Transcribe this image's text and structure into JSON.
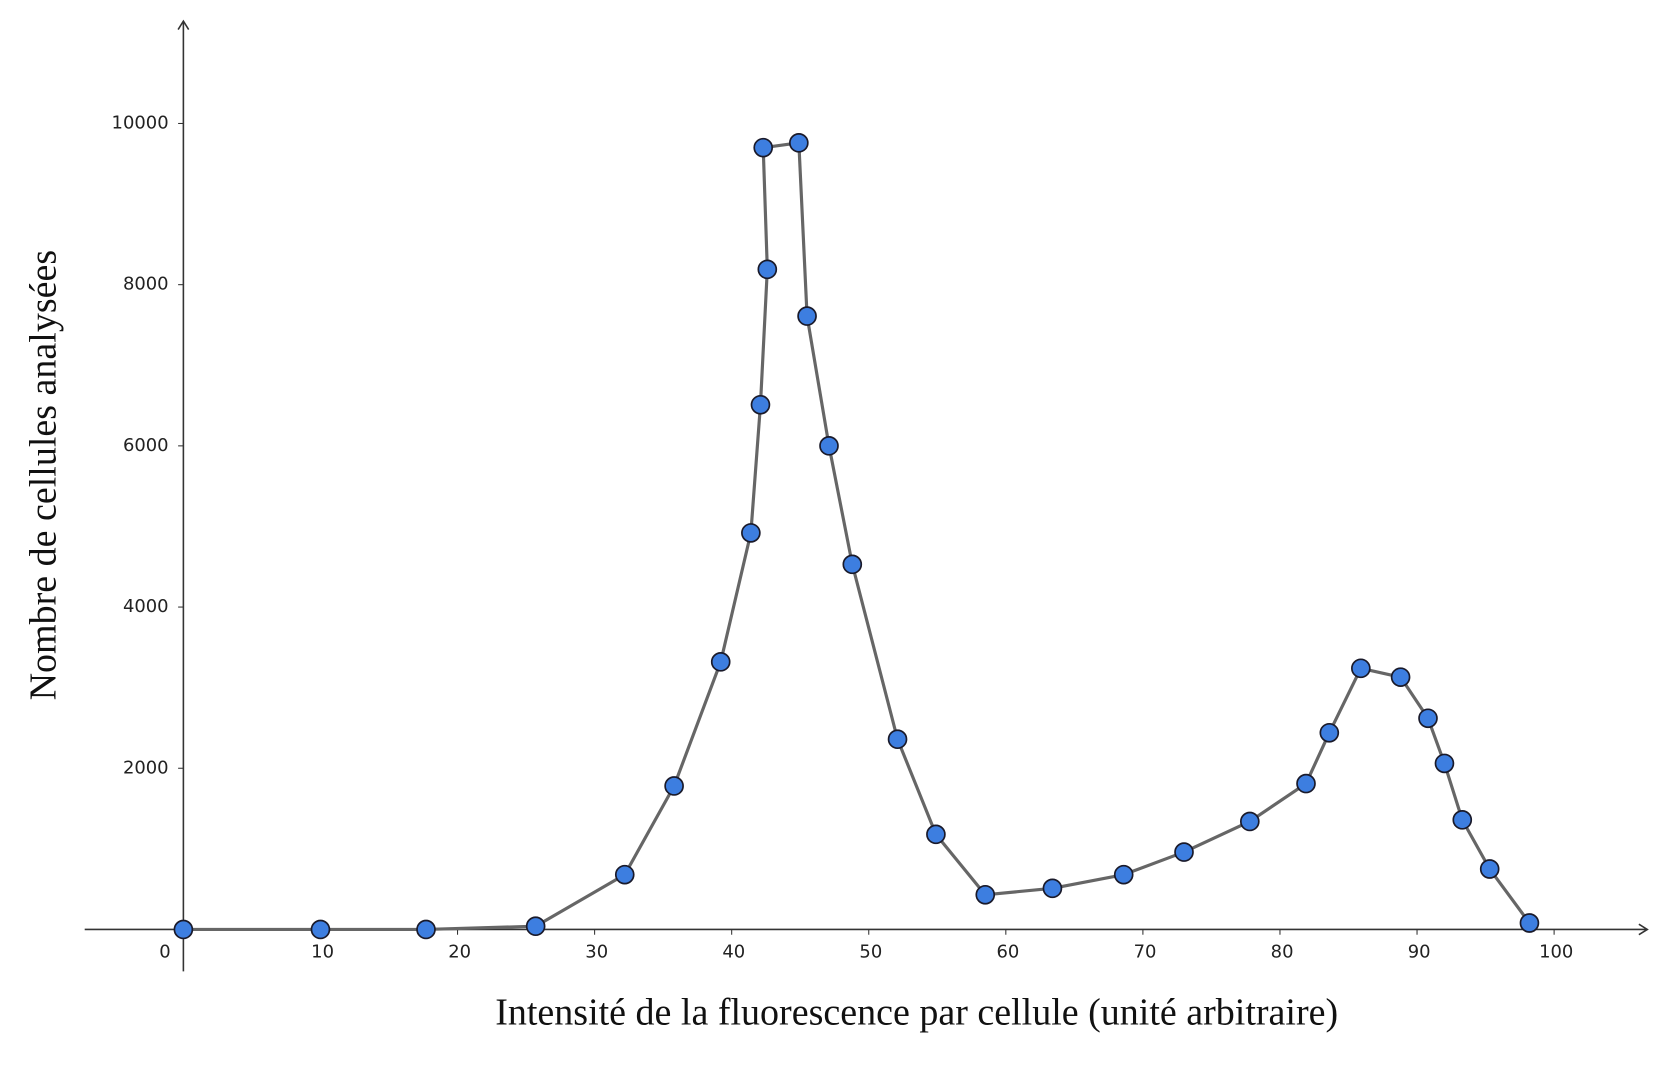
{
  "chart_data": {
    "type": "line",
    "x_label": "Intensité de la fluorescence par cellule (unité arbitraire)",
    "y_label": "Nombre de cellules analysées",
    "x": [
      0,
      10,
      17.7,
      25.7,
      32.2,
      35.8,
      39.2,
      41.4,
      42.1,
      42.6,
      42.3,
      44.9,
      45.5,
      47.1,
      48.8,
      52.1,
      54.9,
      58.5,
      63.4,
      68.6,
      73.0,
      77.8,
      81.9,
      83.6,
      85.9,
      88.8,
      90.8,
      92.0,
      93.3,
      95.3,
      98.2
    ],
    "series": [
      {
        "color": "#3d7ee0",
        "line_color": "#666666",
        "values": [
          0,
          0,
          0,
          40,
          680,
          1780,
          3320,
          4920,
          6510,
          8190,
          9700,
          9760,
          7610,
          6000,
          4530,
          2360,
          1180,
          430,
          510,
          680,
          960,
          1340,
          1810,
          2440,
          3240,
          3130,
          2620,
          2060,
          1360,
          750,
          80
        ]
      }
    ],
    "xlim": [
      -7.2,
      106.8
    ],
    "ylim": [
      -520,
      11270
    ],
    "xticks": [
      0,
      10,
      20,
      30,
      40,
      50,
      60,
      70,
      80,
      90,
      100
    ],
    "yticks": [
      2000,
      4000,
      6000,
      8000,
      10000
    ]
  }
}
